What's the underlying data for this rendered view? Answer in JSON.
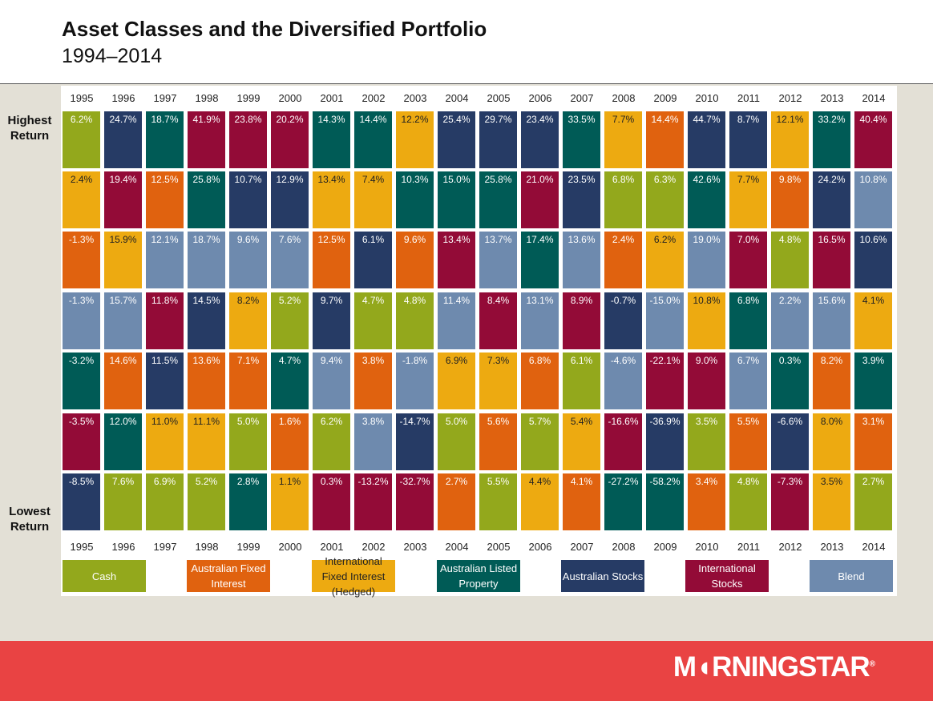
{
  "title": "Asset Classes and the Diversified Portfolio",
  "subtitle": "1994–2014",
  "side_labels": {
    "top": "Highest Return",
    "bottom": "Lowest Return"
  },
  "logo": "M◖RNINGSTAR",
  "logo_mark": "®",
  "colors": {
    "Cash": "#93a81c",
    "Australian Fixed Interest": "#e0620f",
    "International Fixed Interest (Hedged)": "#edaa11",
    "Australian Listed Property": "#005b56",
    "Australian Stocks": "#263b65",
    "International Stocks": "#930b37",
    "Blend": "#6e8aae"
  },
  "chart_data": {
    "type": "table",
    "title": "Asset Classes and the Diversified Portfolio",
    "subtitle": "1994–2014",
    "years": [
      "1995",
      "1996",
      "1997",
      "1998",
      "1999",
      "2000",
      "2001",
      "2002",
      "2003",
      "2004",
      "2005",
      "2006",
      "2007",
      "2008",
      "2009",
      "2010",
      "2011",
      "2012",
      "2013",
      "2014"
    ],
    "legend": [
      {
        "name": "Cash",
        "color": "#93a81c"
      },
      {
        "name": "Australian Fixed Interest",
        "color": "#e0620f"
      },
      {
        "name": "International Fixed Interest (Hedged)",
        "color": "#edaa11"
      },
      {
        "name": "Australian Listed Property",
        "color": "#005b56"
      },
      {
        "name": "Australian Stocks",
        "color": "#263b65"
      },
      {
        "name": "International Stocks",
        "color": "#930b37"
      },
      {
        "name": "Blend",
        "color": "#6e8aae"
      }
    ],
    "ranks": [
      [
        {
          "asset": "Cash",
          "value": "6.2%"
        },
        {
          "asset": "Australian Stocks",
          "value": "24.7%"
        },
        {
          "asset": "Australian Listed Property",
          "value": "18.7%"
        },
        {
          "asset": "International Stocks",
          "value": "41.9%"
        },
        {
          "asset": "International Stocks",
          "value": "23.8%"
        },
        {
          "asset": "International Stocks",
          "value": "20.2%"
        },
        {
          "asset": "Australian Listed Property",
          "value": "14.3%"
        },
        {
          "asset": "Australian Listed Property",
          "value": "14.4%"
        },
        {
          "asset": "International Fixed Interest (Hedged)",
          "value": "12.2%"
        },
        {
          "asset": "Australian Stocks",
          "value": "25.4%"
        },
        {
          "asset": "Australian Stocks",
          "value": "29.7%"
        },
        {
          "asset": "Australian Stocks",
          "value": "23.4%"
        },
        {
          "asset": "Australian Listed Property",
          "value": "33.5%"
        },
        {
          "asset": "International Fixed Interest (Hedged)",
          "value": "7.7%"
        },
        {
          "asset": "Australian Fixed Interest",
          "value": "14.4%"
        },
        {
          "asset": "Australian Stocks",
          "value": "44.7%"
        },
        {
          "asset": "Australian Stocks",
          "value": "8.7%"
        },
        {
          "asset": "International Fixed Interest (Hedged)",
          "value": "12.1%"
        },
        {
          "asset": "Australian Listed Property",
          "value": "33.2%"
        },
        {
          "asset": "International Stocks",
          "value": "40.4%"
        }
      ],
      [
        {
          "asset": "International Fixed Interest (Hedged)",
          "value": "2.4%"
        },
        {
          "asset": "International Stocks",
          "value": "19.4%"
        },
        {
          "asset": "Australian Fixed Interest",
          "value": "12.5%"
        },
        {
          "asset": "Australian Listed Property",
          "value": "25.8%"
        },
        {
          "asset": "Australian Stocks",
          "value": "10.7%"
        },
        {
          "asset": "Australian Stocks",
          "value": "12.9%"
        },
        {
          "asset": "International Fixed Interest (Hedged)",
          "value": "13.4%"
        },
        {
          "asset": "International Fixed Interest (Hedged)",
          "value": "7.4%"
        },
        {
          "asset": "Australian Listed Property",
          "value": "10.3%"
        },
        {
          "asset": "Australian Listed Property",
          "value": "15.0%"
        },
        {
          "asset": "Australian Listed Property",
          "value": "25.8%"
        },
        {
          "asset": "International Stocks",
          "value": "21.0%"
        },
        {
          "asset": "Australian Stocks",
          "value": "23.5%"
        },
        {
          "asset": "Cash",
          "value": "6.8%"
        },
        {
          "asset": "Cash",
          "value": "6.3%"
        },
        {
          "asset": "Australian Listed Property",
          "value": "42.6%"
        },
        {
          "asset": "International Fixed Interest (Hedged)",
          "value": "7.7%"
        },
        {
          "asset": "Australian Fixed Interest",
          "value": "9.8%"
        },
        {
          "asset": "Australian Stocks",
          "value": "24.2%"
        },
        {
          "asset": "Blend",
          "value": "10.8%"
        }
      ],
      [
        {
          "asset": "Australian Fixed Interest",
          "value": "-1.3%"
        },
        {
          "asset": "International Fixed Interest (Hedged)",
          "value": "15.9%"
        },
        {
          "asset": "Blend",
          "value": "12.1%"
        },
        {
          "asset": "Blend",
          "value": "18.7%"
        },
        {
          "asset": "Blend",
          "value": "9.6%"
        },
        {
          "asset": "Blend",
          "value": "7.6%"
        },
        {
          "asset": "Australian Fixed Interest",
          "value": "12.5%"
        },
        {
          "asset": "Australian Stocks",
          "value": "6.1%"
        },
        {
          "asset": "Australian Fixed Interest",
          "value": "9.6%"
        },
        {
          "asset": "International Stocks",
          "value": "13.4%"
        },
        {
          "asset": "Blend",
          "value": "13.7%"
        },
        {
          "asset": "Australian Listed Property",
          "value": "17.4%"
        },
        {
          "asset": "Blend",
          "value": "13.6%"
        },
        {
          "asset": "Australian Fixed Interest",
          "value": "2.4%"
        },
        {
          "asset": "International Fixed Interest (Hedged)",
          "value": "6.2%"
        },
        {
          "asset": "Blend",
          "value": "19.0%"
        },
        {
          "asset": "International Stocks",
          "value": "7.0%"
        },
        {
          "asset": "Cash",
          "value": "4.8%"
        },
        {
          "asset": "International Stocks",
          "value": "16.5%"
        },
        {
          "asset": "Australian Stocks",
          "value": "10.6%"
        }
      ],
      [
        {
          "asset": "Blend",
          "value": "-1.3%"
        },
        {
          "asset": "Blend",
          "value": "15.7%"
        },
        {
          "asset": "International Stocks",
          "value": "11.8%"
        },
        {
          "asset": "Australian Stocks",
          "value": "14.5%"
        },
        {
          "asset": "International Fixed Interest (Hedged)",
          "value": "8.2%"
        },
        {
          "asset": "Cash",
          "value": "5.2%"
        },
        {
          "asset": "Australian Stocks",
          "value": "9.7%"
        },
        {
          "asset": "Cash",
          "value": "4.7%"
        },
        {
          "asset": "Cash",
          "value": "4.8%"
        },
        {
          "asset": "Blend",
          "value": "11.4%"
        },
        {
          "asset": "International Stocks",
          "value": "8.4%"
        },
        {
          "asset": "Blend",
          "value": "13.1%"
        },
        {
          "asset": "International Stocks",
          "value": "8.9%"
        },
        {
          "asset": "Australian Stocks",
          "value": "-0.7%"
        },
        {
          "asset": "Blend",
          "value": "-15.0%"
        },
        {
          "asset": "International Fixed Interest (Hedged)",
          "value": "10.8%"
        },
        {
          "asset": "Australian Listed Property",
          "value": "6.8%"
        },
        {
          "asset": "Blend",
          "value": "2.2%"
        },
        {
          "asset": "Blend",
          "value": "15.6%"
        },
        {
          "asset": "International Fixed Interest (Hedged)",
          "value": "4.1%"
        }
      ],
      [
        {
          "asset": "Australian Listed Property",
          "value": "-3.2%"
        },
        {
          "asset": "Australian Fixed Interest",
          "value": "14.6%"
        },
        {
          "asset": "Australian Stocks",
          "value": "11.5%"
        },
        {
          "asset": "Australian Fixed Interest",
          "value": "13.6%"
        },
        {
          "asset": "Australian Fixed Interest",
          "value": "7.1%"
        },
        {
          "asset": "Australian Listed Property",
          "value": "4.7%"
        },
        {
          "asset": "Blend",
          "value": "9.4%"
        },
        {
          "asset": "Australian Fixed Interest",
          "value": "3.8%"
        },
        {
          "asset": "Blend",
          "value": "-1.8%"
        },
        {
          "asset": "International Fixed Interest (Hedged)",
          "value": "6.9%"
        },
        {
          "asset": "International Fixed Interest (Hedged)",
          "value": "7.3%"
        },
        {
          "asset": "Australian Fixed Interest",
          "value": "6.8%"
        },
        {
          "asset": "Cash",
          "value": "6.1%"
        },
        {
          "asset": "Blend",
          "value": "-4.6%"
        },
        {
          "asset": "International Stocks",
          "value": "-22.1%"
        },
        {
          "asset": "International Stocks",
          "value": "9.0%"
        },
        {
          "asset": "Blend",
          "value": "6.7%"
        },
        {
          "asset": "Australian Listed Property",
          "value": "0.3%"
        },
        {
          "asset": "Australian Fixed Interest",
          "value": "8.2%"
        },
        {
          "asset": "Australian Listed Property",
          "value": "3.9%"
        }
      ],
      [
        {
          "asset": "International Stocks",
          "value": "-3.5%"
        },
        {
          "asset": "Australian Listed Property",
          "value": "12.0%"
        },
        {
          "asset": "International Fixed Interest (Hedged)",
          "value": "11.0%"
        },
        {
          "asset": "International Fixed Interest (Hedged)",
          "value": "11.1%"
        },
        {
          "asset": "Cash",
          "value": "5.0%"
        },
        {
          "asset": "Australian Fixed Interest",
          "value": "1.6%"
        },
        {
          "asset": "Cash",
          "value": "6.2%"
        },
        {
          "asset": "Blend",
          "value": "3.8%"
        },
        {
          "asset": "Australian Stocks",
          "value": "-14.7%"
        },
        {
          "asset": "Cash",
          "value": "5.0%"
        },
        {
          "asset": "Australian Fixed Interest",
          "value": "5.6%"
        },
        {
          "asset": "Cash",
          "value": "5.7%"
        },
        {
          "asset": "International Fixed Interest (Hedged)",
          "value": "5.4%"
        },
        {
          "asset": "International Stocks",
          "value": "-16.6%"
        },
        {
          "asset": "Australian Stocks",
          "value": "-36.9%"
        },
        {
          "asset": "Cash",
          "value": "3.5%"
        },
        {
          "asset": "Australian Fixed Interest",
          "value": "5.5%"
        },
        {
          "asset": "Australian Stocks",
          "value": "-6.6%"
        },
        {
          "asset": "International Fixed Interest (Hedged)",
          "value": "8.0%"
        },
        {
          "asset": "Australian Fixed Interest",
          "value": "3.1%"
        }
      ],
      [
        {
          "asset": "Australian Stocks",
          "value": "-8.5%"
        },
        {
          "asset": "Cash",
          "value": "7.6%"
        },
        {
          "asset": "Cash",
          "value": "6.9%"
        },
        {
          "asset": "Cash",
          "value": "5.2%"
        },
        {
          "asset": "Australian Listed Property",
          "value": "2.8%"
        },
        {
          "asset": "International Fixed Interest (Hedged)",
          "value": "1.1%"
        },
        {
          "asset": "International Stocks",
          "value": "0.3%"
        },
        {
          "asset": "International Stocks",
          "value": "-13.2%"
        },
        {
          "asset": "International Stocks",
          "value": "-32.7%"
        },
        {
          "asset": "Australian Fixed Interest",
          "value": "2.7%"
        },
        {
          "asset": "Cash",
          "value": "5.5%"
        },
        {
          "asset": "International Fixed Interest (Hedged)",
          "value": "4.4%"
        },
        {
          "asset": "Australian Fixed Interest",
          "value": "4.1%"
        },
        {
          "asset": "Australian Listed Property",
          "value": "-27.2%"
        },
        {
          "asset": "Australian Listed Property",
          "value": "-58.2%"
        },
        {
          "asset": "Australian Fixed Interest",
          "value": "3.4%"
        },
        {
          "asset": "Cash",
          "value": "4.8%"
        },
        {
          "asset": "International Stocks",
          "value": "-7.3%"
        },
        {
          "asset": "International Fixed Interest (Hedged)",
          "value": "3.5%"
        },
        {
          "asset": "Cash",
          "value": "2.7%"
        }
      ]
    ]
  },
  "legend_labels": [
    {
      "name": "Cash",
      "text": "Cash"
    },
    {
      "name": "Australian Fixed Interest",
      "text": "Australian Fixed Interest"
    },
    {
      "name": "International Fixed Interest (Hedged)",
      "text": "International Fixed Interest (Hedged)"
    },
    {
      "name": "Australian Listed Property",
      "text": "Australian Listed Property"
    },
    {
      "name": "Australian Stocks",
      "text": "Australian Stocks"
    },
    {
      "name": "International Stocks",
      "text": "International Stocks"
    },
    {
      "name": "Blend",
      "text": "Blend"
    }
  ]
}
